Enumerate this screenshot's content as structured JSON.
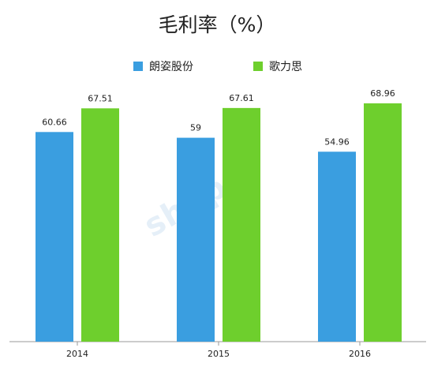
{
  "chart_data": {
    "type": "bar",
    "title": "毛利率（%）",
    "categories": [
      "2014",
      "2015",
      "2016"
    ],
    "series": [
      {
        "name": "朗姿股份",
        "values": [
          60.66,
          59,
          54.96
        ],
        "labels": [
          "60.66",
          "59",
          "54.96"
        ],
        "color": "#3a9ee0"
      },
      {
        "name": "歌力思",
        "values": [
          67.51,
          67.61,
          68.96
        ],
        "labels": [
          "67.51",
          "67.61",
          "68.96"
        ],
        "color": "#6ecf2d"
      }
    ],
    "ylim": [
      0,
      80
    ],
    "grid": false,
    "legend": "top-center"
  },
  "watermark": "shop",
  "colors": {
    "axis": "#9a9a9a",
    "text": "#222222"
  }
}
